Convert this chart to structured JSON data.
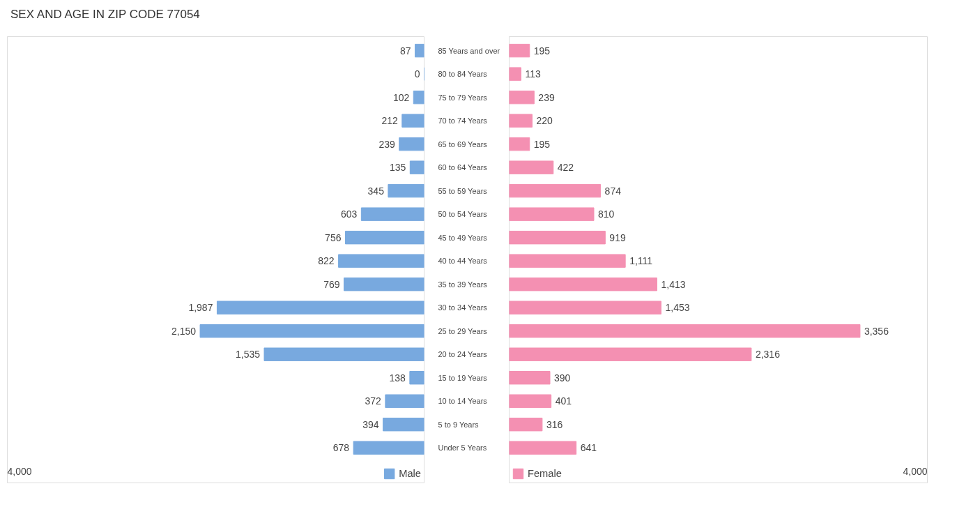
{
  "chart_data": [
    {
      "type": "bar",
      "orientation": "horizontal",
      "title": "SEX AND AGE IN ZIP CODE 77054",
      "categories": [
        "85 Years and over",
        "80 to 84 Years",
        "75 to 79 Years",
        "70 to 74 Years",
        "65 to 69 Years",
        "60 to 64 Years",
        "55 to 59 Years",
        "50 to 54 Years",
        "45 to 49 Years",
        "40 to 44 Years",
        "35 to 39 Years",
        "30 to 34 Years",
        "25 to 29 Years",
        "20 to 24 Years",
        "15 to 19 Years",
        "10 to 14 Years",
        "5 to 9 Years",
        "Under 5 Years"
      ],
      "series": [
        {
          "name": "Male",
          "color": "#78a9df",
          "values": [
            87,
            0,
            102,
            212,
            239,
            135,
            345,
            603,
            756,
            822,
            769,
            1987,
            2150,
            1535,
            138,
            372,
            394,
            678
          ],
          "value_labels": [
            "87",
            "0",
            "102",
            "212",
            "239",
            "135",
            "345",
            "603",
            "756",
            "822",
            "769",
            "1,987",
            "2,150",
            "1,535",
            "138",
            "372",
            "394",
            "678"
          ]
        }
      ],
      "xlim": [
        4000,
        0
      ],
      "annotations": [
        "4,000"
      ],
      "legend": "bottom",
      "tick_labels": "y"
    },
    {
      "type": "bar",
      "orientation": "horizontal",
      "categories": [
        null,
        null,
        null,
        null,
        null,
        null,
        null,
        null,
        null,
        null,
        null,
        null,
        null,
        null,
        null,
        null,
        null,
        null
      ],
      "series": [
        {
          "name": "Female",
          "color": "#f490b2",
          "values": [
            195,
            113,
            239,
            220,
            195,
            422,
            874,
            810,
            919,
            1111,
            1413,
            1453,
            3356,
            2316,
            390,
            401,
            316,
            641
          ],
          "value_labels": [
            "195",
            "113",
            "239",
            "220",
            "195",
            "422",
            "874",
            "810",
            "919",
            "1,111",
            "1,413",
            "1,453",
            "3,356",
            "2,316",
            "390",
            "401",
            "316",
            "641"
          ]
        }
      ],
      "xlim": [
        0,
        4000
      ],
      "annotations": [
        "4,000"
      ],
      "legend": "bottom",
      "tick_labels": false
    }
  ]
}
